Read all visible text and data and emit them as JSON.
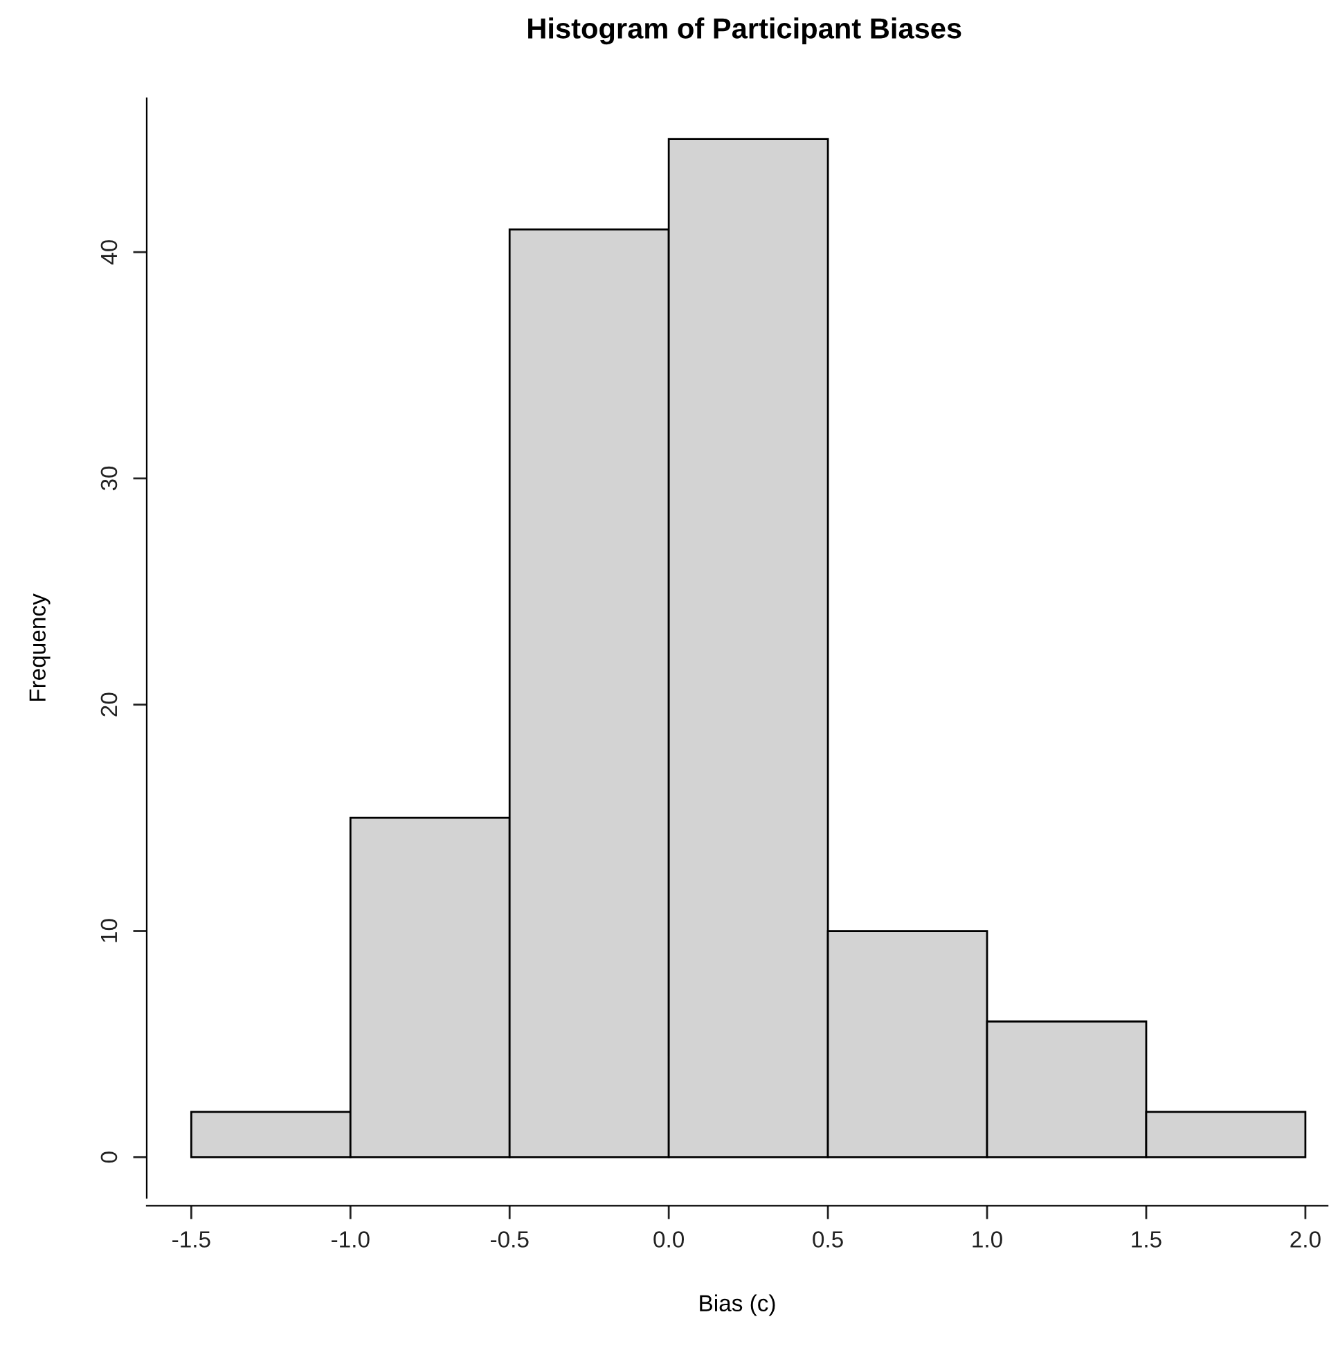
{
  "chart_data": {
    "type": "histogram",
    "title": "Histogram of Participant Biases",
    "xlabel": "Bias (c)",
    "ylabel": "Frequency",
    "bins": [
      -1.5,
      -1.0,
      -0.5,
      0.0,
      0.5,
      1.0,
      1.5,
      2.0
    ],
    "values": [
      2,
      15,
      41,
      45,
      10,
      6,
      2
    ],
    "color": "#d3d3d3",
    "xlim": [
      -1.64,
      2.07
    ],
    "ylim": [
      -1.8,
      46.8
    ],
    "xticks": [
      {
        "value": -1.5,
        "label": "-1.5"
      },
      {
        "value": -1.0,
        "label": "-1.0"
      },
      {
        "value": -0.5,
        "label": "-0.5"
      },
      {
        "value": 0.0,
        "label": "0.0"
      },
      {
        "value": 0.5,
        "label": "0.5"
      },
      {
        "value": 1.0,
        "label": "1.0"
      },
      {
        "value": 1.5,
        "label": "1.5"
      },
      {
        "value": 2.0,
        "label": "2.0"
      }
    ],
    "yticks": [
      0,
      10,
      20,
      30,
      40
    ],
    "grid": false
  }
}
